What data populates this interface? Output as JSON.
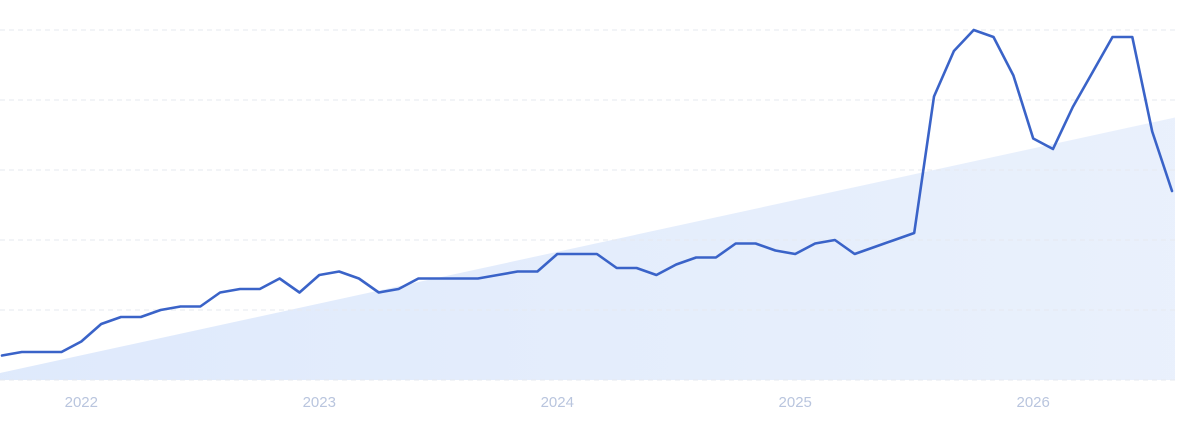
{
  "chart_data": {
    "type": "line",
    "categories": [
      null,
      null,
      null,
      null,
      "2022",
      null,
      null,
      null,
      null,
      null,
      null,
      null,
      null,
      null,
      null,
      null,
      "2023",
      null,
      null,
      null,
      null,
      null,
      null,
      null,
      null,
      null,
      null,
      null,
      "2024",
      null,
      null,
      null,
      null,
      null,
      null,
      null,
      null,
      null,
      null,
      null,
      "2025",
      null,
      null,
      null,
      null,
      null,
      null,
      null,
      null,
      null,
      null,
      null,
      "2026",
      null,
      null,
      null,
      null,
      null,
      null,
      null
    ],
    "series": [
      {
        "color": "#3a63c8",
        "values": [
          7,
          8,
          8,
          8,
          11,
          16,
          18,
          18,
          20,
          21,
          21,
          25,
          26,
          26,
          29,
          25,
          30,
          31,
          29,
          25,
          26,
          29,
          29,
          29,
          29,
          30,
          31,
          31,
          36,
          36,
          36,
          32,
          32,
          30,
          33,
          35,
          35,
          39,
          39,
          37,
          36,
          39,
          40,
          36,
          38,
          40,
          42,
          81,
          94,
          100,
          98,
          87,
          69,
          66,
          78,
          88,
          98,
          98,
          71,
          54
        ]
      }
    ],
    "trend": {
      "color": "#dbe7fb",
      "values": [
        2,
        75
      ]
    },
    "ylim": [
      0,
      100
    ],
    "yticks": [
      0,
      20,
      40,
      60,
      80,
      100
    ],
    "grid": true
  }
}
